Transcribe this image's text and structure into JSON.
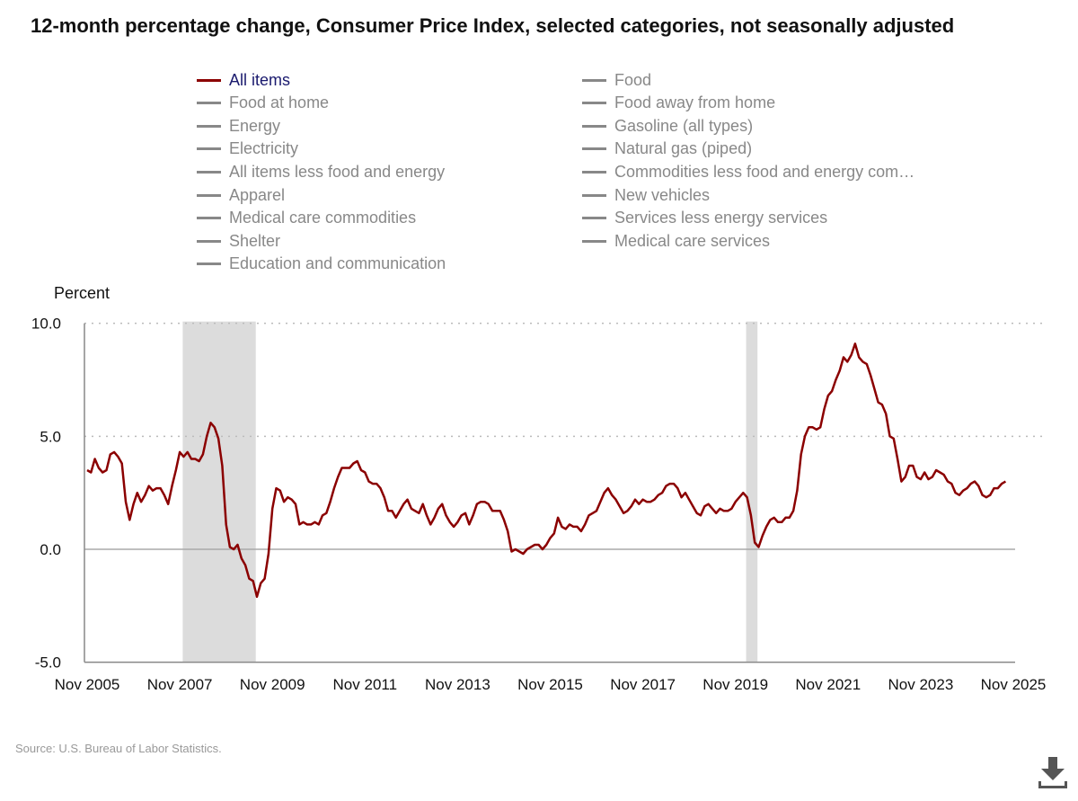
{
  "title": "12-month percentage change, Consumer Price Index, selected categories, not seasonally adjusted",
  "legend": {
    "left": [
      "All items",
      "Food at home",
      "Energy",
      "Electricity",
      "All items less food and energy",
      "Apparel",
      "Medical care commodities",
      "Shelter",
      "Education and communication"
    ],
    "right": [
      "Food",
      "Food away from home",
      "Gasoline (all types)",
      "Natural gas (piped)",
      "Commodities less food and energy com…",
      "New vehicles",
      "Services less energy services",
      "Medical care services"
    ],
    "active": "All items"
  },
  "source": "Source: U.S. Bureau of Labor Statistics.",
  "download_icon": "download-icon",
  "colors": {
    "series": "#8b0000",
    "recession": "#dcdcdc",
    "legend_active": "#1a1a6e",
    "legend_inactive": "#888888"
  },
  "chart_data": {
    "type": "line",
    "ylabel": "Percent",
    "ylim": [
      -5,
      10
    ],
    "yticks": [
      "10.0",
      "5.0",
      "0.0",
      "-5.0"
    ],
    "ytick_values": [
      10,
      5,
      0,
      -5
    ],
    "xticks": [
      "Nov 2005",
      "Nov 2007",
      "Nov 2009",
      "Nov 2011",
      "Nov 2013",
      "Nov 2015",
      "Nov 2017",
      "Nov 2019",
      "Nov 2021",
      "Nov 2023",
      "Nov 2025"
    ],
    "x_start": "Nov 2005",
    "x_end": "Nov 2025",
    "grid": "horizontal dotted",
    "recessions": [
      {
        "start": "Dec 2007",
        "end": "Jun 2009"
      },
      {
        "start": "Feb 2020",
        "end": "Apr 2020"
      }
    ],
    "series": [
      {
        "name": "All items",
        "start": "Nov 2005",
        "frequency": "monthly",
        "values": [
          3.5,
          3.4,
          4.0,
          3.6,
          3.4,
          3.5,
          4.2,
          4.3,
          4.1,
          3.8,
          2.1,
          1.3,
          2.0,
          2.5,
          2.1,
          2.4,
          2.8,
          2.6,
          2.7,
          2.7,
          2.4,
          2.0,
          2.8,
          3.5,
          4.3,
          4.1,
          4.3,
          4.0,
          4.0,
          3.9,
          4.2,
          5.0,
          5.6,
          5.4,
          4.9,
          3.7,
          1.1,
          0.1,
          0.0,
          0.2,
          -0.4,
          -0.7,
          -1.3,
          -1.4,
          -2.1,
          -1.5,
          -1.3,
          -0.2,
          1.8,
          2.7,
          2.6,
          2.1,
          2.3,
          2.2,
          2.0,
          1.1,
          1.2,
          1.1,
          1.1,
          1.2,
          1.1,
          1.5,
          1.6,
          2.1,
          2.7,
          3.2,
          3.6,
          3.6,
          3.6,
          3.8,
          3.9,
          3.5,
          3.4,
          3.0,
          2.9,
          2.9,
          2.7,
          2.3,
          1.7,
          1.7,
          1.4,
          1.7,
          2.0,
          2.2,
          1.8,
          1.7,
          1.6,
          2.0,
          1.5,
          1.1,
          1.4,
          1.8,
          2.0,
          1.5,
          1.2,
          1.0,
          1.2,
          1.5,
          1.6,
          1.1,
          1.5,
          2.0,
          2.1,
          2.1,
          2.0,
          1.7,
          1.7,
          1.7,
          1.3,
          0.8,
          -0.1,
          0.0,
          -0.1,
          -0.2,
          0.0,
          0.1,
          0.2,
          0.2,
          0.0,
          0.2,
          0.5,
          0.7,
          1.4,
          1.0,
          0.9,
          1.1,
          1.0,
          1.0,
          0.8,
          1.1,
          1.5,
          1.6,
          1.7,
          2.1,
          2.5,
          2.7,
          2.4,
          2.2,
          1.9,
          1.6,
          1.7,
          1.9,
          2.2,
          2.0,
          2.2,
          2.1,
          2.1,
          2.2,
          2.4,
          2.5,
          2.8,
          2.9,
          2.9,
          2.7,
          2.3,
          2.5,
          2.2,
          1.9,
          1.6,
          1.5,
          1.9,
          2.0,
          1.8,
          1.6,
          1.8,
          1.7,
          1.7,
          1.8,
          2.1,
          2.3,
          2.5,
          2.3,
          1.5,
          0.3,
          0.1,
          0.6,
          1.0,
          1.3,
          1.4,
          1.2,
          1.2,
          1.4,
          1.4,
          1.7,
          2.6,
          4.2,
          5.0,
          5.4,
          5.4,
          5.3,
          5.4,
          6.2,
          6.8,
          7.0,
          7.5,
          7.9,
          8.5,
          8.3,
          8.6,
          9.1,
          8.5,
          8.3,
          8.2,
          7.7,
          7.1,
          6.5,
          6.4,
          6.0,
          5.0,
          4.9,
          4.0,
          3.0,
          3.2,
          3.7,
          3.7,
          3.2,
          3.1,
          3.4,
          3.1,
          3.2,
          3.5,
          3.4,
          3.3,
          3.0,
          2.9,
          2.5,
          2.4,
          2.6,
          2.7,
          2.9,
          3.0,
          2.8,
          2.4,
          2.3,
          2.4,
          2.7,
          2.7,
          2.9,
          3.0
        ]
      }
    ]
  }
}
